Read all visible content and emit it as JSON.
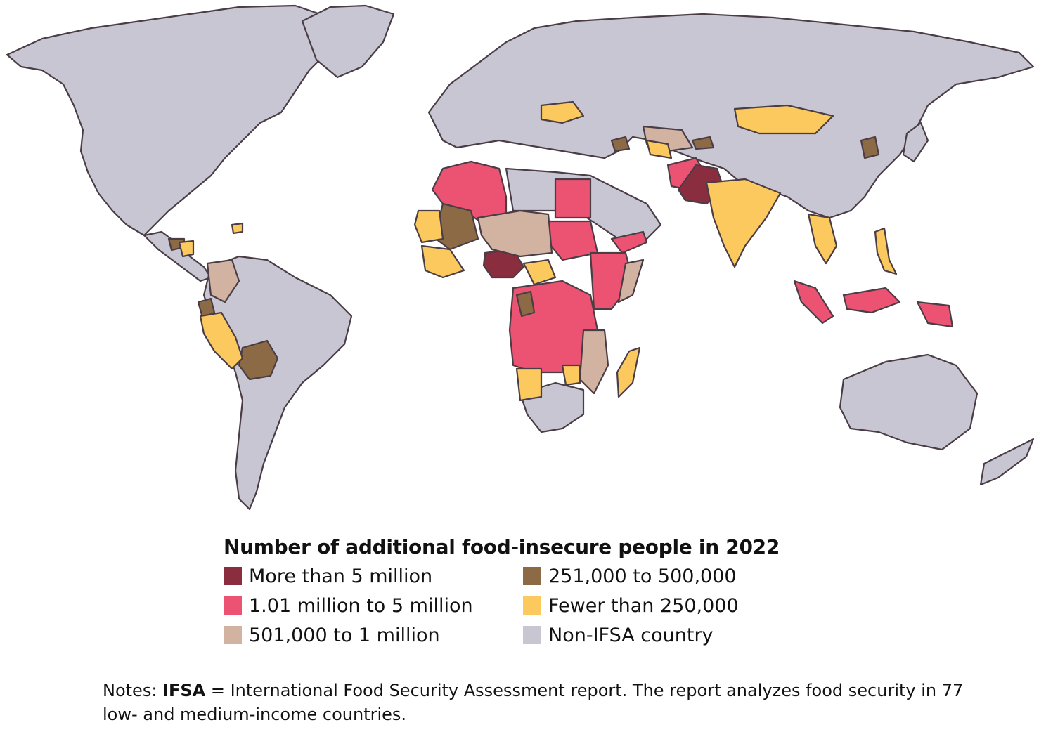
{
  "legend": {
    "title": "Number of additional food-insecure people in 2022",
    "items": [
      {
        "label": "More than 5 million",
        "color": "#8a2d3f"
      },
      {
        "label": "251,000 to 500,000",
        "color": "#8b6a45"
      },
      {
        "label": "1.01 million to 5 million",
        "color": "#ec5373"
      },
      {
        "label": "Fewer than 250,000",
        "color": "#fbc95e"
      },
      {
        "label": "501,000 to 1 million",
        "color": "#d2b2a1"
      },
      {
        "label": "Non-IFSA country",
        "color": "#c8c6d3"
      }
    ]
  },
  "notes": {
    "prefix": "Notes: ",
    "term": "IFSA",
    "text": " = International Food Security Assessment report. The report analyzes food security in 77 low- and medium-income countries."
  },
  "colors": {
    "border": "#4a3d45",
    "background": "#ffffff"
  }
}
